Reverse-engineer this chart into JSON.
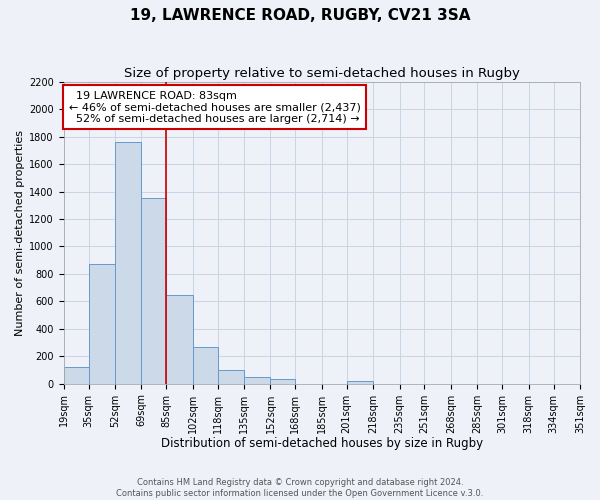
{
  "title": "19, LAWRENCE ROAD, RUGBY, CV21 3SA",
  "subtitle": "Size of property relative to semi-detached houses in Rugby",
  "xlabel": "Distribution of semi-detached houses by size in Rugby",
  "ylabel": "Number of semi-detached properties",
  "property_label": "19 LAWRENCE ROAD: 83sqm",
  "pct_smaller": 46,
  "count_smaller": 2437,
  "pct_larger": 52,
  "count_larger": 2714,
  "bin_edges": [
    19,
    35,
    52,
    69,
    85,
    102,
    118,
    135,
    152,
    168,
    185,
    201,
    218,
    235,
    251,
    268,
    285,
    301,
    318,
    334,
    351
  ],
  "bin_counts": [
    120,
    870,
    1760,
    1350,
    645,
    270,
    100,
    50,
    35,
    0,
    0,
    20,
    0,
    0,
    0,
    0,
    0,
    0,
    0,
    0
  ],
  "bar_color": "#ccd9e8",
  "bar_edge_color": "#6699cc",
  "vline_color": "#cc0000",
  "vline_x": 85,
  "annotation_box_edge": "#cc0000",
  "grid_color": "#c8d4e4",
  "background_color": "#eef2f8",
  "title_fontsize": 11,
  "subtitle_fontsize": 9.5,
  "xlabel_fontsize": 8.5,
  "ylabel_fontsize": 8,
  "tick_fontsize": 7,
  "annotation_fontsize": 8,
  "footer_text": "Contains HM Land Registry data © Crown copyright and database right 2024.\nContains public sector information licensed under the Open Government Licence v.3.0.",
  "ylim": [
    0,
    2200
  ],
  "yticks": [
    0,
    200,
    400,
    600,
    800,
    1000,
    1200,
    1400,
    1600,
    1800,
    2000,
    2200
  ]
}
